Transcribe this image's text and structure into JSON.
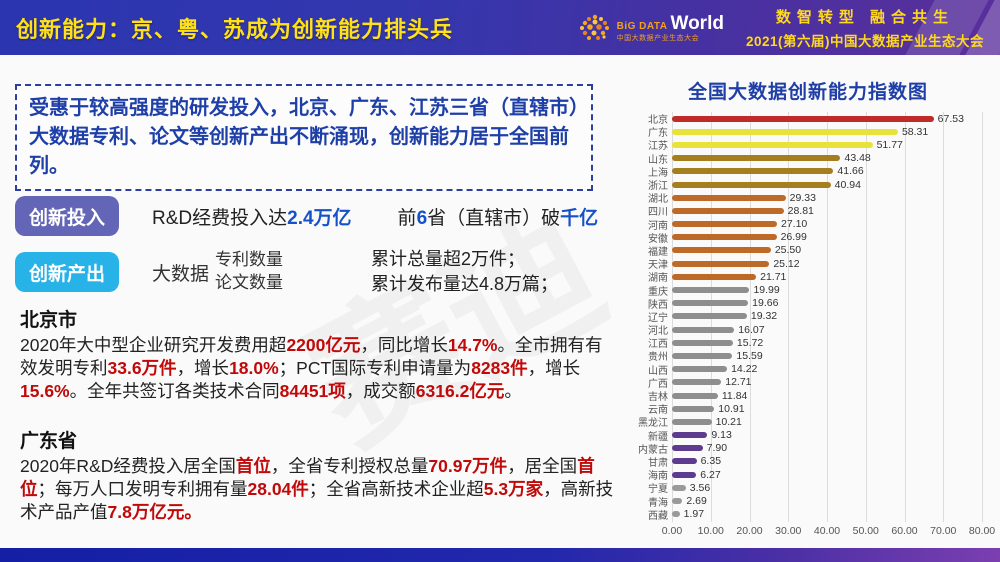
{
  "header": {
    "title": "创新能力：京、粤、苏成为创新能力排头兵",
    "logo": {
      "brand_top": "BiG DATA",
      "brand_main": "World",
      "brand_sub": "中国大数据产业生态大会"
    },
    "slogan_line1": "数智转型 融合共生",
    "slogan_line2": "2021(第六届)中国大数据产业生态大会"
  },
  "intro": {
    "text": "受惠于较高强度的研发投入，北京、广东、江苏三省（直辖市）大数据专利、论文等创新产出不断涌现，创新能力居于全国前列。"
  },
  "rows": {
    "input": {
      "badge": "创新投入",
      "text1_segments": [
        {
          "t": "R&D经费投入达"
        },
        {
          "t": "2.4万亿",
          "hl": true
        }
      ],
      "text2_segments": [
        {
          "t": "前"
        },
        {
          "t": "6",
          "hl": true
        },
        {
          "t": "省（直辖市）破"
        },
        {
          "t": "千亿",
          "hl": true
        }
      ]
    },
    "output": {
      "badge": "创新产出",
      "prefix": "大数据",
      "stack": [
        "专利数量",
        "论文数量"
      ],
      "result_lines": [
        "累计总量超2万件；",
        "累计发布量达4.8万篇；"
      ]
    }
  },
  "beijing": {
    "heading": "北京市",
    "segments": [
      {
        "t": "2020年大中型企业研究开发费用超"
      },
      {
        "t": "2200亿元",
        "hl": true
      },
      {
        "t": "，同比增长"
      },
      {
        "t": "14.7%",
        "hl": true
      },
      {
        "t": "。全市拥有有效发明专利"
      },
      {
        "t": "33.6万件",
        "hl": true
      },
      {
        "t": "，增长"
      },
      {
        "t": "18.0%",
        "hl": true
      },
      {
        "t": "；PCT国际专利申请量为"
      },
      {
        "t": "8283件",
        "hl": true
      },
      {
        "t": "，增长"
      },
      {
        "t": "15.6%",
        "hl": true
      },
      {
        "t": "。全年共签订各类技术合同"
      },
      {
        "t": "84451项",
        "hl": true
      },
      {
        "t": "，成交额"
      },
      {
        "t": "6316.2亿元",
        "hl": true
      },
      {
        "t": "。"
      }
    ]
  },
  "guangdong": {
    "heading": "广东省",
    "segments": [
      {
        "t": "2020年R&D经费投入居全国"
      },
      {
        "t": "首位",
        "hl": true
      },
      {
        "t": "，全省专利授权总量"
      },
      {
        "t": "70.97万件",
        "hl": true
      },
      {
        "t": "，居全国"
      },
      {
        "t": "首位",
        "hl": true
      },
      {
        "t": "；每万人口发明专利拥有量"
      },
      {
        "t": "28.04件",
        "hl": true
      },
      {
        "t": "；全省高新技术企业超"
      },
      {
        "t": "5.3万家",
        "hl": true
      },
      {
        "t": "，高新技术产品产值"
      },
      {
        "t": "7.8万亿元。",
        "hl": true
      }
    ]
  },
  "watermark": "赛迪",
  "colors": {
    "header_title_yellow": "#FFE11A",
    "slogan_yellow": "#FFD91C",
    "intro_blue": "#1E3FA8",
    "highlight_blue": "#1551C8",
    "highlight_red": "#C00A0A",
    "badge_purple": "#6365B7",
    "badge_cyan": "#28B3E8",
    "chart_title_blue": "#1F3FA6",
    "bar_red": "#BE2B28",
    "bar_yellow": "#E8E23B",
    "bar_gold": "#A57E20",
    "bar_orange": "#BD6A28",
    "bar_gray": "#8E8E8E",
    "bar_purple": "#5D3C8F"
  },
  "chart_data": {
    "type": "bar",
    "orientation": "horizontal",
    "title": "全国大数据创新能力指数图",
    "xlabel": "",
    "ylabel": "",
    "xlim": [
      0,
      80
    ],
    "grid": true,
    "legend": false,
    "xticks": [
      "0.00",
      "10.00",
      "20.00",
      "30.00",
      "40.00",
      "50.00",
      "60.00",
      "70.00",
      "80.00"
    ],
    "categories": [
      "北京",
      "广东",
      "江苏",
      "山东",
      "上海",
      "浙江",
      "湖北",
      "四川",
      "河南",
      "安徽",
      "福建",
      "天津",
      "湖南",
      "重庆",
      "陕西",
      "辽宁",
      "河北",
      "江西",
      "贵州",
      "山西",
      "广西",
      "吉林",
      "云南",
      "黑龙江",
      "新疆",
      "内蒙古",
      "甘肃",
      "海南",
      "宁夏",
      "青海",
      "西藏"
    ],
    "values": [
      67.53,
      58.31,
      51.77,
      43.48,
      41.66,
      40.94,
      29.33,
      28.81,
      27.1,
      26.99,
      25.5,
      25.12,
      21.71,
      19.99,
      19.66,
      19.32,
      16.07,
      15.72,
      15.59,
      14.22,
      12.71,
      11.84,
      10.91,
      10.21,
      9.13,
      7.9,
      6.35,
      6.27,
      3.56,
      2.69,
      1.97
    ],
    "value_labels": [
      "67.53",
      "58.31",
      "51.77",
      "43.48",
      "41.66",
      "40.94",
      "29.33",
      "28.81",
      "27.10",
      "26.99",
      "25.50",
      "25.12",
      "21.71",
      "19.99",
      "19.66",
      "19.32",
      "16.07",
      "15.72",
      "15.59",
      "14.22",
      "12.71",
      "11.84",
      "10.91",
      "10.21",
      "9.13",
      "7.90",
      "6.35",
      "6.27",
      "3.56",
      "2.69",
      "1.97"
    ],
    "colors": [
      "#BE2B28",
      "#E8E23B",
      "#E8E23B",
      "#A57E20",
      "#A57E20",
      "#A57E20",
      "#BD6A28",
      "#BD6A28",
      "#BD6A28",
      "#BD6A28",
      "#BD6A28",
      "#BD6A28",
      "#BD6A28",
      "#8E8E8E",
      "#8E8E8E",
      "#8E8E8E",
      "#8E8E8E",
      "#8E8E8E",
      "#8E8E8E",
      "#8E8E8E",
      "#8E8E8E",
      "#8E8E8E",
      "#8E8E8E",
      "#8E8E8E",
      "#5D3C8F",
      "#5D3C8F",
      "#5D3C8F",
      "#5D3C8F",
      "#9A9A9A",
      "#9A9A9A",
      "#9A9A9A"
    ]
  }
}
